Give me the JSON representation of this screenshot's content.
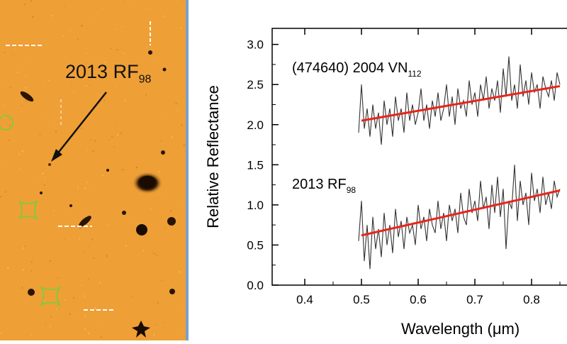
{
  "image": {
    "target_label": "2013 RF",
    "target_label_sub": "98"
  },
  "chart_data": {
    "type": "line",
    "xlabel_prefix": "Wavelength (",
    "xlabel_unit": "μm",
    "xlabel_suffix": ")",
    "ylabel": "Relative Reflectance",
    "xlim": [
      0.35,
      0.85
    ],
    "ylim": [
      0.0,
      3.2
    ],
    "xticks": [
      "0.4",
      "0.5",
      "0.6",
      "0.7",
      "0.8"
    ],
    "yticks": [
      "0.0",
      "0.5",
      "1.0",
      "1.5",
      "2.0",
      "2.5",
      "3.0"
    ],
    "series": [
      {
        "name": "(474640) 2004 VN",
        "name_sub": "112",
        "color": "#333333",
        "fit": {
          "color": "#e8241c",
          "x": [
            0.5,
            0.85
          ],
          "y": [
            2.05,
            2.48
          ]
        },
        "x": [
          0.495,
          0.5,
          0.505,
          0.51,
          0.515,
          0.52,
          0.525,
          0.53,
          0.535,
          0.54,
          0.545,
          0.55,
          0.555,
          0.56,
          0.565,
          0.57,
          0.575,
          0.58,
          0.585,
          0.59,
          0.595,
          0.6,
          0.605,
          0.61,
          0.615,
          0.62,
          0.625,
          0.63,
          0.635,
          0.64,
          0.645,
          0.65,
          0.655,
          0.66,
          0.665,
          0.67,
          0.675,
          0.68,
          0.685,
          0.69,
          0.695,
          0.7,
          0.705,
          0.71,
          0.715,
          0.72,
          0.725,
          0.73,
          0.735,
          0.74,
          0.745,
          0.75,
          0.755,
          0.76,
          0.765,
          0.77,
          0.775,
          0.78,
          0.785,
          0.79,
          0.795,
          0.8,
          0.805,
          0.81,
          0.815,
          0.82,
          0.825,
          0.83,
          0.835,
          0.84,
          0.845,
          0.85
        ],
        "y": [
          1.9,
          2.5,
          1.95,
          2.2,
          1.85,
          2.25,
          1.95,
          2.15,
          1.75,
          2.3,
          2.0,
          2.2,
          1.85,
          2.35,
          2.05,
          2.2,
          1.9,
          2.4,
          2.05,
          2.25,
          2.0,
          2.15,
          2.45,
          2.05,
          2.25,
          1.95,
          2.3,
          2.1,
          2.4,
          2.05,
          2.2,
          2.5,
          2.1,
          2.35,
          2.0,
          2.45,
          2.2,
          2.3,
          2.1,
          2.55,
          2.25,
          2.4,
          2.1,
          2.5,
          2.3,
          2.6,
          2.2,
          2.45,
          2.3,
          2.55,
          2.15,
          2.7,
          2.35,
          2.85,
          2.3,
          2.5,
          2.2,
          2.75,
          2.35,
          2.55,
          2.25,
          2.65,
          2.4,
          2.5,
          2.2,
          2.6,
          2.45,
          2.35,
          2.55,
          2.3,
          2.65,
          2.5
        ]
      },
      {
        "name": "2013 RF",
        "name_sub": "98",
        "color": "#333333",
        "fit": {
          "color": "#e8241c",
          "x": [
            0.5,
            0.85
          ],
          "y": [
            0.62,
            1.18
          ]
        },
        "x": [
          0.495,
          0.5,
          0.505,
          0.51,
          0.515,
          0.52,
          0.525,
          0.53,
          0.535,
          0.54,
          0.545,
          0.55,
          0.555,
          0.56,
          0.565,
          0.57,
          0.575,
          0.58,
          0.585,
          0.59,
          0.595,
          0.6,
          0.605,
          0.61,
          0.615,
          0.62,
          0.625,
          0.63,
          0.635,
          0.64,
          0.645,
          0.65,
          0.655,
          0.66,
          0.665,
          0.67,
          0.675,
          0.68,
          0.685,
          0.69,
          0.695,
          0.7,
          0.705,
          0.71,
          0.715,
          0.72,
          0.725,
          0.73,
          0.735,
          0.74,
          0.745,
          0.75,
          0.755,
          0.76,
          0.765,
          0.77,
          0.775,
          0.78,
          0.785,
          0.79,
          0.795,
          0.8,
          0.805,
          0.81,
          0.815,
          0.82,
          0.825,
          0.83,
          0.835,
          0.84,
          0.845,
          0.85
        ],
        "y": [
          0.55,
          1.05,
          0.3,
          0.75,
          0.2,
          0.85,
          0.45,
          0.7,
          0.35,
          0.9,
          0.5,
          0.75,
          0.4,
          0.95,
          0.6,
          0.8,
          0.45,
          0.85,
          0.65,
          0.75,
          0.5,
          1.0,
          0.7,
          0.85,
          0.55,
          0.95,
          0.75,
          0.65,
          1.05,
          0.7,
          0.9,
          0.55,
          1.0,
          0.8,
          0.95,
          0.65,
          1.15,
          0.85,
          0.75,
          1.2,
          0.9,
          1.05,
          0.8,
          1.3,
          0.95,
          1.1,
          0.7,
          1.25,
          0.9,
          1.35,
          0.85,
          1.2,
          0.45,
          1.05,
          0.95,
          1.5,
          0.8,
          1.3,
          1.0,
          1.15,
          0.75,
          1.4,
          1.05,
          1.2,
          0.9,
          1.35,
          1.0,
          1.15,
          0.95,
          1.3,
          1.1,
          1.2
        ]
      }
    ],
    "grid": false,
    "legend": "none"
  }
}
